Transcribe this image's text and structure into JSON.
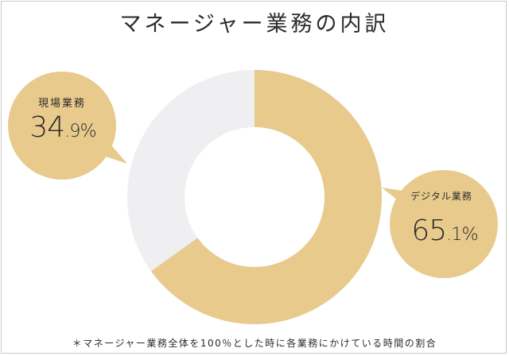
{
  "title": "マネージャー業務の内訳",
  "footnote": "＊マネージャー業務全体を100％とした時に各業務にかけている時間の割合",
  "colors": {
    "digital": "#e8ca8c",
    "field": "#efeef0",
    "bubble": "#e8ca8c",
    "text": "#2b2b2b"
  },
  "chart_data": {
    "type": "pie",
    "donut": true,
    "title": "マネージャー業務の内訳",
    "series": [
      {
        "name": "デジタル業務",
        "value": 65.1,
        "label": "65.1%"
      },
      {
        "name": "現場業務",
        "value": 34.9,
        "label": "34.9%"
      }
    ]
  }
}
